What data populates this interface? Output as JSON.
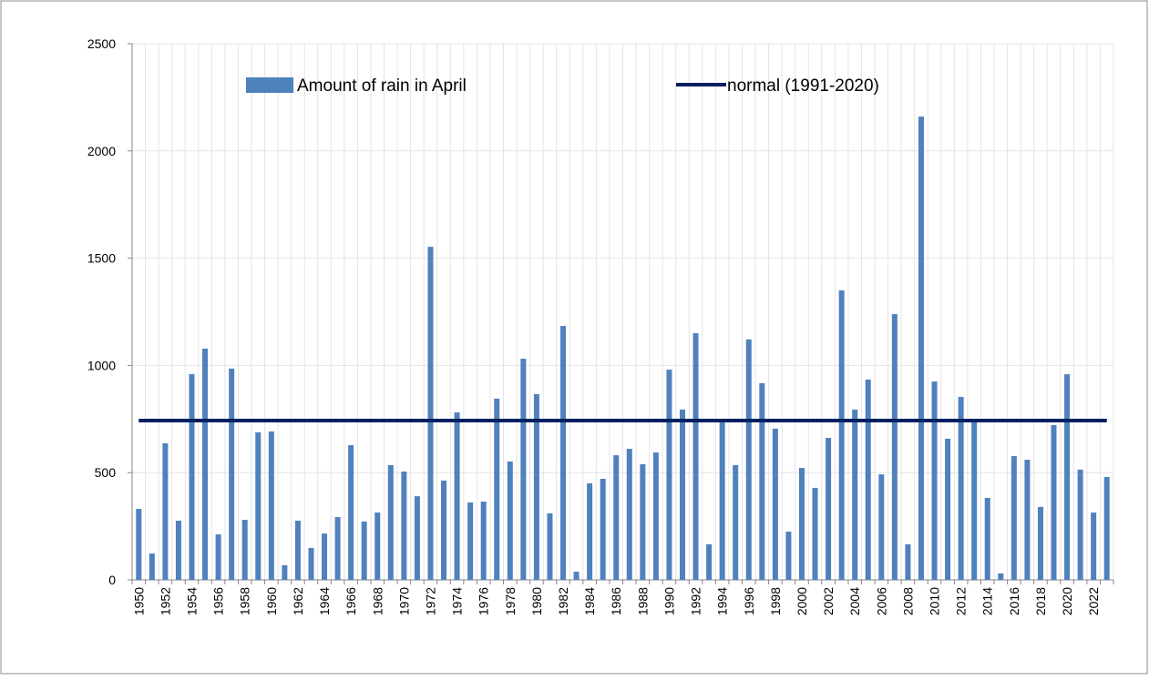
{
  "chart_data": {
    "type": "bar",
    "categories": [
      "1950",
      null,
      "1952",
      null,
      "1954",
      null,
      "1956",
      null,
      "1958",
      null,
      "1960",
      null,
      "1962",
      null,
      "1964",
      null,
      "1966",
      null,
      "1968",
      null,
      "1970",
      null,
      "1972",
      null,
      "1974",
      null,
      "1976",
      null,
      "1978",
      null,
      "1980",
      null,
      "1982",
      null,
      "1984",
      null,
      "1986",
      null,
      "1988",
      null,
      "1990",
      null,
      "1992",
      null,
      "1994",
      null,
      "1996",
      null,
      "1998",
      null,
      "2000",
      null,
      "2002",
      null,
      "2004",
      null,
      "2006",
      null,
      "2008",
      null,
      "2010",
      null,
      "2012",
      null,
      "2014",
      null,
      "2016",
      null,
      "2018",
      null,
      "2020",
      null,
      "2022",
      null
    ],
    "series": [
      {
        "name": "Amount of rain in April",
        "type": "bar",
        "color": "#4f81bd",
        "values": [
          331,
          123,
          637,
          276,
          959,
          1078,
          212,
          985,
          280,
          688,
          692,
          68,
          276,
          149,
          216,
          293,
          628,
          272,
          314,
          535,
          505,
          390,
          1553,
          463,
          781,
          361,
          365,
          845,
          552,
          1031,
          866,
          310,
          1184,
          38,
          450,
          471,
          581,
          611,
          539,
          594,
          980,
          794,
          1150,
          166,
          739,
          535,
          1121,
          917,
          705,
          225,
          522,
          429,
          662,
          1350,
          794,
          934,
          492,
          1239,
          166,
          2160,
          925,
          658,
          853,
          743,
          382,
          30,
          577,
          560,
          340,
          722,
          959,
          514,
          314,
          480
        ]
      },
      {
        "name": "normal (1991-2020)",
        "type": "line",
        "color": "#002060",
        "values": [
          743,
          743,
          743,
          743,
          743,
          743,
          743,
          743,
          743,
          743,
          743,
          743,
          743,
          743,
          743,
          743,
          743,
          743,
          743,
          743,
          743,
          743,
          743,
          743,
          743,
          743,
          743,
          743,
          743,
          743,
          743,
          743,
          743,
          743,
          743,
          743,
          743,
          743,
          743,
          743,
          743,
          743,
          743,
          743,
          743,
          743,
          743,
          743,
          743,
          743,
          743,
          743,
          743,
          743,
          743,
          743,
          743,
          743,
          743,
          743,
          743,
          743,
          743,
          743,
          743,
          743,
          743,
          743,
          743,
          743,
          743,
          743,
          743,
          743
        ]
      }
    ],
    "ylim": [
      0,
      2500
    ],
    "yticks": [
      0,
      500,
      1000,
      1500,
      2000,
      2500
    ],
    "grid": true,
    "legend": "top"
  }
}
